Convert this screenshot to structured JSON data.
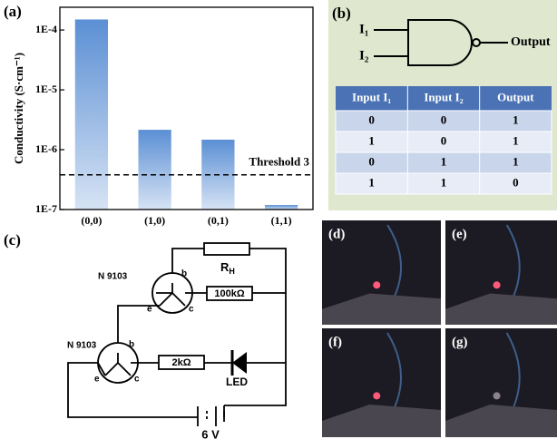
{
  "chart_data": {
    "type": "bar",
    "panel_label": "(a)",
    "y_label": "Conductivity (S·cm⁻¹)",
    "categories": [
      "(0,0)",
      "(1,0)",
      "(0,1)",
      "(1,1)"
    ],
    "values": [
      0.00015,
      2.15e-06,
      1.47e-06,
      1.19e-07
    ],
    "color": "#5b8fd4",
    "log_scale": true,
    "ylim": [
      1e-07,
      0.00024
    ],
    "yticks": [
      {
        "value": 1e-07,
        "label": "1E-7"
      },
      {
        "value": 1e-06,
        "label": "1E-6"
      },
      {
        "value": 1e-05,
        "label": "1E-5"
      },
      {
        "value": 0.0001,
        "label": "1E-4"
      }
    ],
    "threshold": {
      "text": "Threshold 3",
      "value": 3.8e-07
    }
  },
  "panel_b": {
    "label": "(b)",
    "inputs": [
      "I₁",
      "I₂"
    ],
    "output": "Output",
    "table": {
      "header": [
        "Input I₁",
        "Input I₂",
        "Output"
      ],
      "rows": [
        [
          0,
          0,
          1
        ],
        [
          1,
          0,
          1
        ],
        [
          0,
          1,
          1
        ],
        [
          1,
          1,
          0
        ]
      ]
    }
  },
  "panel_c": {
    "label": "(c)",
    "transistors": [
      "N 9103",
      "N 9103"
    ],
    "pins": [
      "b",
      "c",
      "e"
    ],
    "rh": {
      "main": "R",
      "sub": "H"
    },
    "r1": "100kΩ",
    "r2": "2kΩ",
    "led": "LED",
    "battery": "6 V"
  },
  "photos": [
    "(d)",
    "(e)",
    "(f)",
    "(g)"
  ]
}
